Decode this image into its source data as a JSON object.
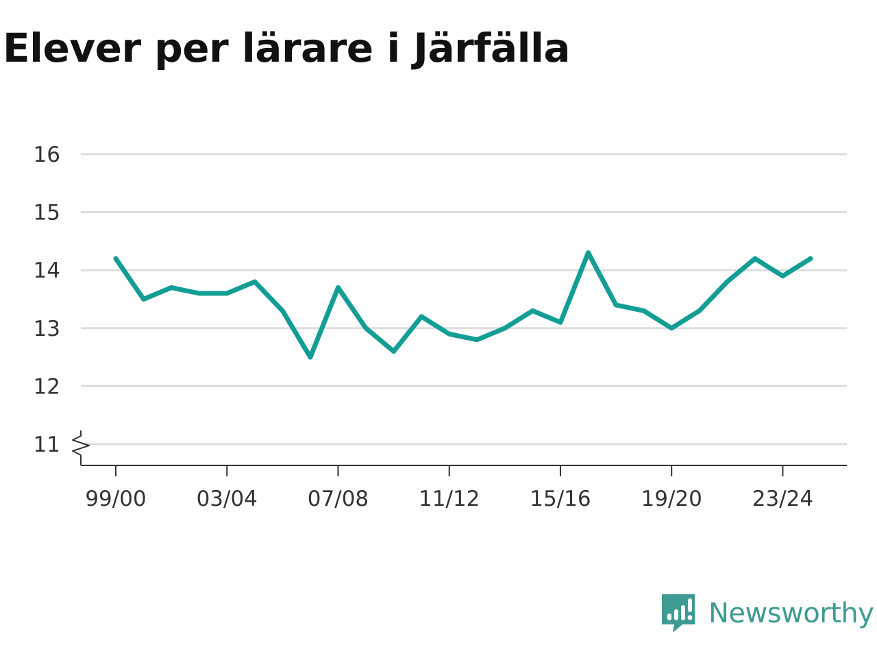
{
  "title": "Elever per lärare i Järfälla",
  "brand": {
    "name": "Newsworthy",
    "color": "#3d9b93"
  },
  "chart_data": {
    "type": "line",
    "title": "Elever per lärare i Järfälla",
    "xlabel": "",
    "ylabel": "",
    "ylim": [
      11,
      16
    ],
    "yticks": [
      11,
      12,
      13,
      14,
      15,
      16
    ],
    "y_axis_break": true,
    "grid": true,
    "line_color": "#139e95",
    "categories": [
      "99/00",
      "00/01",
      "01/02",
      "02/03",
      "03/04",
      "04/05",
      "05/06",
      "06/07",
      "07/08",
      "08/09",
      "09/10",
      "10/11",
      "11/12",
      "12/13",
      "13/14",
      "14/15",
      "15/16",
      "16/17",
      "17/18",
      "18/19",
      "19/20",
      "20/21",
      "21/22",
      "22/23",
      "23/24",
      "24/25"
    ],
    "xtick_labels": [
      "99/00",
      "03/04",
      "07/08",
      "11/12",
      "15/16",
      "19/20",
      "23/24"
    ],
    "series": [
      {
        "values": [
          14.2,
          13.5,
          13.7,
          13.6,
          13.6,
          13.8,
          13.3,
          12.5,
          13.7,
          13.0,
          12.6,
          13.2,
          12.9,
          12.8,
          13.0,
          13.3,
          13.1,
          14.3,
          13.4,
          13.3,
          13.0,
          13.3,
          13.8,
          14.2,
          13.9,
          14.2
        ]
      }
    ]
  }
}
